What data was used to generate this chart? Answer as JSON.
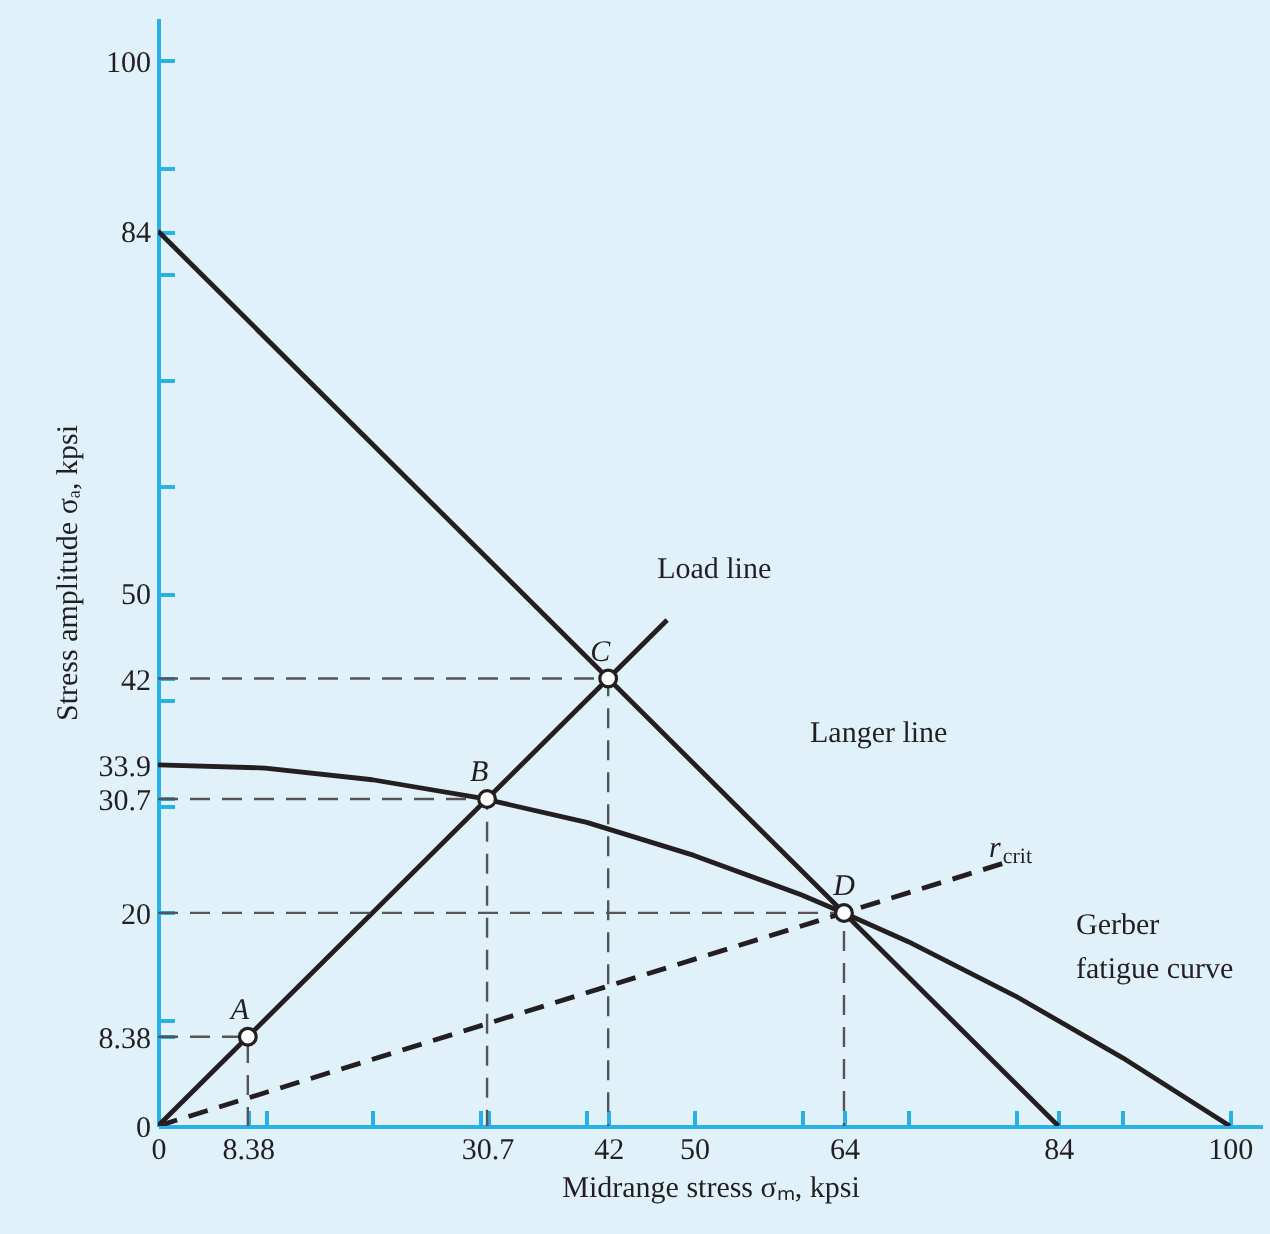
{
  "chart_data": {
    "type": "line",
    "xlabel": "Midrange stress σₘ, kpsi",
    "ylabel": "Stress amplitude σₐ, kpsi",
    "xlim": [
      0,
      103
    ],
    "ylim": [
      0,
      104
    ],
    "xticks": [
      0,
      8.38,
      {
        "value": 10,
        "label": null
      },
      {
        "value": 20,
        "label": null
      },
      {
        "value": 30,
        "label": null
      },
      30.7,
      {
        "value": 40,
        "label": null
      },
      42,
      50,
      {
        "value": 60,
        "label": null
      },
      64,
      {
        "value": 70,
        "label": null
      },
      {
        "value": 80,
        "label": null
      },
      84,
      {
        "value": 90,
        "label": null
      },
      100
    ],
    "yticks": [
      0,
      8.38,
      {
        "value": 10,
        "label": null
      },
      20,
      {
        "value": 30,
        "label": null
      },
      30.7,
      33.9,
      {
        "value": 40,
        "label": null
      },
      42,
      50,
      {
        "value": 60,
        "label": null
      },
      {
        "value": 70,
        "label": null
      },
      {
        "value": 80,
        "label": null
      },
      84,
      {
        "value": 90,
        "label": null
      },
      100
    ],
    "grid": false,
    "series": [
      {
        "type": "line",
        "color": "#231f20",
        "line_style": "solid",
        "x": [
          0,
          47.5
        ],
        "values": [
          0,
          47.5
        ]
      },
      {
        "type": "line",
        "color": "#231f20",
        "line_style": "solid",
        "x": [
          0,
          84
        ],
        "values": [
          84,
          0
        ]
      },
      {
        "type": "line",
        "color": "#231f20",
        "line_style": "solid",
        "x": [
          0,
          10,
          20,
          30,
          40,
          50,
          60,
          64,
          70,
          80,
          90,
          100
        ],
        "values": [
          33.9,
          33.6,
          32.5,
          30.8,
          28.5,
          25.4,
          21.7,
          20,
          17.3,
          12.2,
          6.4,
          0
        ]
      },
      {
        "type": "line",
        "color": "#231f20",
        "line_style": "dashed",
        "x": [
          0,
          79
        ],
        "values": [
          0,
          24.7
        ]
      },
      {
        "type": "line",
        "color": "#555555",
        "line_style": "dashed",
        "x": [
          0,
          8.38,
          8.38
        ],
        "values": [
          8.38,
          8.38,
          0
        ]
      },
      {
        "type": "line",
        "color": "#555555",
        "line_style": "dashed",
        "x": [
          0,
          30.7,
          30.7
        ],
        "values": [
          30.7,
          30.7,
          0
        ]
      },
      {
        "type": "line",
        "color": "#555555",
        "line_style": "dashed",
        "x": [
          0,
          42,
          42
        ],
        "values": [
          42,
          42,
          0
        ]
      },
      {
        "type": "line",
        "color": "#555555",
        "line_style": "dashed",
        "x": [
          0,
          64,
          64
        ],
        "values": [
          20,
          20,
          0
        ]
      },
      {
        "type": "scatter",
        "color": "#231f20",
        "marker": "circle",
        "x": [
          8.38,
          30.7,
          42,
          64
        ],
        "values": [
          8.38,
          30.7,
          42,
          20
        ]
      }
    ],
    "annotations": [
      {
        "text": "A",
        "x": 8.38,
        "y": 8.38
      },
      {
        "text": "B",
        "x": 30.7,
        "y": 30.7
      },
      {
        "text": "C",
        "x": 42,
        "y": 42
      },
      {
        "text": "D",
        "x": 64,
        "y": 20
      },
      {
        "text": "Load line",
        "x": 47.5,
        "y": 47.5
      },
      "Langer line",
      {
        "text": "r$_{crit}$",
        "x": 79,
        "y": 24.7
      },
      "Gerber fatigue curve"
    ]
  }
}
